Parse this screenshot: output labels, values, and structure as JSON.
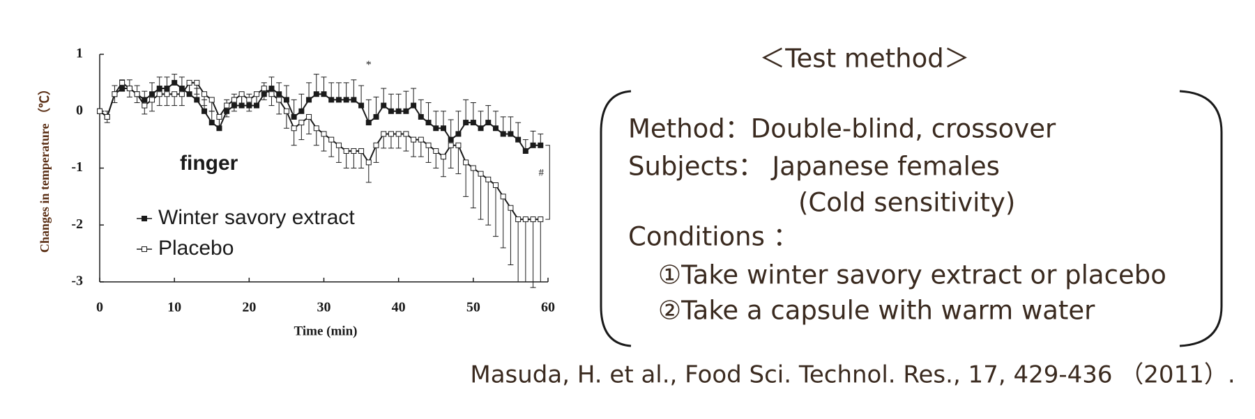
{
  "chart_data": {
    "type": "line",
    "x_label": "Time (min)",
    "y_label": "Changes in temperature （℃）",
    "panel_label": "finger",
    "annotations": [
      "*",
      "#"
    ],
    "xlim": [
      0,
      60
    ],
    "xticks": [
      0,
      10,
      20,
      30,
      40,
      50,
      60
    ],
    "ylim": [
      -3,
      1
    ],
    "yticks": [
      -3,
      -2,
      -1,
      0,
      1
    ],
    "legend": "lower left",
    "x": [
      0,
      1,
      2,
      3,
      4,
      5,
      6,
      7,
      8,
      9,
      10,
      11,
      12,
      13,
      14,
      15,
      16,
      17,
      18,
      19,
      20,
      21,
      22,
      23,
      24,
      25,
      26,
      27,
      28,
      29,
      30,
      31,
      32,
      33,
      34,
      35,
      36,
      37,
      38,
      39,
      40,
      41,
      42,
      43,
      44,
      45,
      46,
      47,
      48,
      49,
      50,
      51,
      52,
      53,
      54,
      55,
      56,
      57,
      58,
      59
    ],
    "series": [
      {
        "name": "Winter savory extract",
        "color": "#1a1a1a",
        "marker": "filled",
        "error_side": "up",
        "values": [
          0,
          -0.1,
          0.3,
          0.4,
          0.4,
          0.3,
          0.2,
          0.3,
          0.4,
          0.4,
          0.5,
          0.4,
          0.3,
          0.2,
          0,
          -0.2,
          -0.3,
          0,
          0.1,
          0.1,
          0.1,
          0.1,
          0.3,
          0.4,
          0.3,
          0.2,
          -0.1,
          0,
          0.2,
          0.3,
          0.3,
          0.2,
          0.2,
          0.2,
          0.2,
          0.1,
          -0.2,
          -0.1,
          0.1,
          0,
          0,
          0,
          0.1,
          -0.1,
          -0.2,
          -0.3,
          -0.3,
          -0.5,
          -0.4,
          -0.2,
          -0.2,
          -0.3,
          -0.2,
          -0.3,
          -0.4,
          -0.4,
          -0.5,
          -0.7,
          -0.6,
          -0.6
        ],
        "errors": [
          0,
          0.1,
          0.15,
          0.15,
          0.15,
          0.15,
          0.15,
          0.2,
          0.2,
          0.2,
          0.15,
          0.2,
          0.2,
          0.2,
          0.2,
          0.2,
          0.2,
          0.2,
          0.2,
          0.2,
          0.2,
          0.2,
          0.2,
          0.2,
          0.2,
          0.25,
          0.3,
          0.3,
          0.3,
          0.35,
          0.3,
          0.3,
          0.3,
          0.3,
          0.35,
          0.35,
          0.4,
          0.35,
          0.3,
          0.3,
          0.3,
          0.35,
          0.3,
          0.3,
          0.35,
          0.3,
          0.3,
          0.35,
          0.4,
          0.4,
          0.35,
          0.3,
          0.3,
          0.3,
          0.3,
          0.3,
          0.3,
          0.2,
          0.25,
          0.2
        ]
      },
      {
        "name": "Placebo",
        "color": "#1a1a1a",
        "marker": "open",
        "error_side": "down",
        "values": [
          0,
          -0.1,
          0.3,
          0.5,
          0.4,
          0.3,
          0.1,
          0.2,
          0.3,
          0.3,
          0.3,
          0.3,
          0.5,
          0.5,
          0.3,
          0.2,
          -0.1,
          0.1,
          0.2,
          0.3,
          0.2,
          0.3,
          0.4,
          0.3,
          0.2,
          0,
          -0.3,
          -0.2,
          -0.1,
          -0.3,
          -0.4,
          -0.5,
          -0.6,
          -0.7,
          -0.7,
          -0.7,
          -0.9,
          -0.6,
          -0.4,
          -0.4,
          -0.4,
          -0.4,
          -0.5,
          -0.5,
          -0.6,
          -0.7,
          -0.8,
          -0.6,
          -0.6,
          -0.9,
          -1,
          -1.1,
          -1.2,
          -1.3,
          -1.5,
          -1.7,
          -1.9,
          -1.9,
          -1.9,
          -1.9
        ],
        "errors": [
          0,
          0.1,
          0.15,
          0.15,
          0.15,
          0.15,
          0.15,
          0.2,
          0.2,
          0.2,
          0.2,
          0.2,
          0.2,
          0.2,
          0.2,
          0.2,
          0.2,
          0.2,
          0.2,
          0.2,
          0.2,
          0.2,
          0.2,
          0.2,
          0.25,
          0.3,
          0.3,
          0.3,
          0.3,
          0.3,
          0.3,
          0.3,
          0.3,
          0.3,
          0.3,
          0.3,
          0.35,
          0.3,
          0.25,
          0.25,
          0.25,
          0.3,
          0.3,
          0.3,
          0.3,
          0.3,
          0.35,
          0.4,
          0.5,
          0.6,
          0.7,
          0.8,
          0.8,
          0.9,
          0.9,
          1,
          1.1,
          1.1,
          1.2,
          1.1
        ]
      }
    ]
  },
  "test_method": {
    "title": "＜Test method＞",
    "lines": [
      "Method：Double-blind, crossover",
      "Subjects： Japanese females",
      "(Cold sensitivity)",
      "Conditions ：",
      "①Take winter savory extract or placebo",
      "②Take a capsule with warm water"
    ]
  },
  "citation": "Masuda, H. et al., Food Sci. Technol. Res., 17, 429-436 （2011）."
}
